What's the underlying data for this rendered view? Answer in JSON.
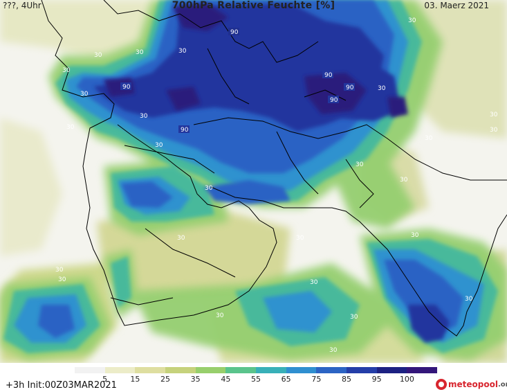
{
  "header": {
    "left": "???, 4Uhr",
    "title": "700hPa Relative Feuchte [%]",
    "right": "03. Maerz 2021"
  },
  "colors": {
    "background_dry": "#f5f5f2",
    "very_moist": "#1b2a8c",
    "land_border": "#000000"
  },
  "colorbar": {
    "labels": [
      "5",
      "15",
      "25",
      "35",
      "45",
      "55",
      "65",
      "75",
      "85",
      "95",
      "100"
    ],
    "colors": [
      "#f2f2f2",
      "#ececc8",
      "#dedea0",
      "#c6d27c",
      "#98cf6c",
      "#5ac48c",
      "#38b0b8",
      "#2f8fd0",
      "#2c64c4",
      "#243ea8",
      "#1c2182",
      "#33167a"
    ]
  },
  "contour_labels": {
    "ninety": "90",
    "thirty": "30"
  },
  "footer": {
    "left": "+3h  Init:00Z03MAR2021"
  },
  "logo": {
    "name": "meteopool",
    "tld": ".org"
  }
}
